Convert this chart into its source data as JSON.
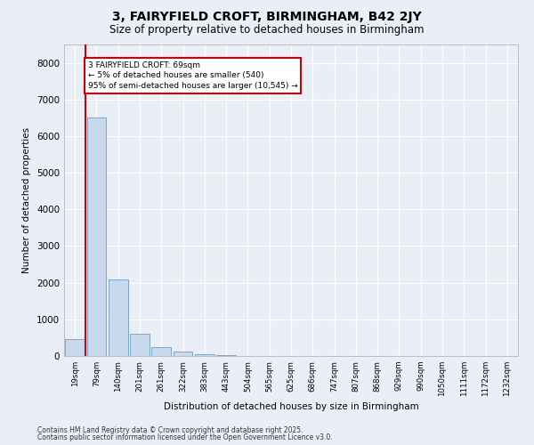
{
  "title1": "3, FAIRYFIELD CROFT, BIRMINGHAM, B42 2JY",
  "title2": "Size of property relative to detached houses in Birmingham",
  "xlabel": "Distribution of detached houses by size in Birmingham",
  "ylabel": "Number of detached properties",
  "categories": [
    "19sqm",
    "79sqm",
    "140sqm",
    "201sqm",
    "261sqm",
    "322sqm",
    "383sqm",
    "443sqm",
    "504sqm",
    "565sqm",
    "625sqm",
    "686sqm",
    "747sqm",
    "807sqm",
    "868sqm",
    "929sqm",
    "990sqm",
    "1050sqm",
    "1111sqm",
    "1172sqm",
    "1232sqm"
  ],
  "values": [
    450,
    6500,
    2100,
    600,
    250,
    110,
    55,
    25,
    10,
    5,
    2,
    1,
    0,
    0,
    0,
    0,
    0,
    0,
    0,
    0,
    0
  ],
  "bar_color": "#c9d9ed",
  "bar_edge_color": "#7aa8cc",
  "annotation_text": "3 FAIRYFIELD CROFT: 69sqm\n← 5% of detached houses are smaller (540)\n95% of semi-detached houses are larger (10,545) →",
  "vline_color": "#cc0000",
  "annotation_box_color": "#cc0000",
  "ylim": [
    0,
    8500
  ],
  "yticks": [
    0,
    1000,
    2000,
    3000,
    4000,
    5000,
    6000,
    7000,
    8000
  ],
  "footer1": "Contains HM Land Registry data © Crown copyright and database right 2025.",
  "footer2": "Contains public sector information licensed under the Open Government Licence v3.0.",
  "background_color": "#eaeff7",
  "plot_bg_color": "#eaeff7"
}
